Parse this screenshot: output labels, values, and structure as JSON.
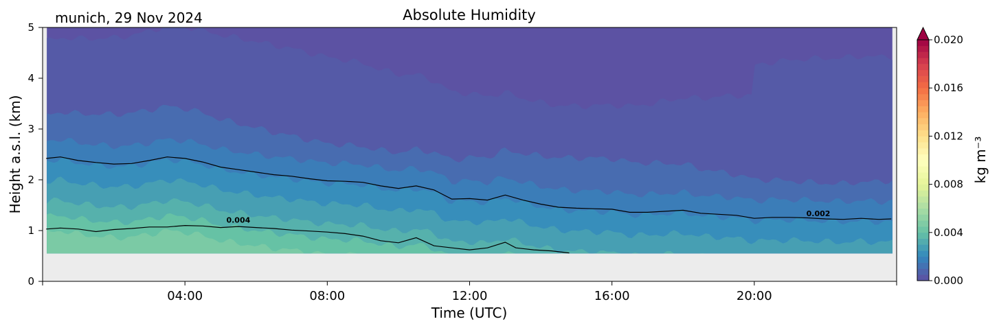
{
  "header": {
    "location_date": "munich, 29 Nov 2024"
  },
  "chart_data": {
    "type": "heatmap",
    "title": "Absolute Humidity",
    "xlabel": "Time (UTC)",
    "ylabel": "Height a.s.l. (km)",
    "xlim_hours": [
      0,
      24
    ],
    "ylim": [
      0,
      5
    ],
    "x_tick_labels": [
      "04:00",
      "08:00",
      "12:00",
      "16:00",
      "20:00"
    ],
    "x_tick_hours": [
      4,
      8,
      12,
      16,
      20
    ],
    "y_ticks": [
      0,
      1,
      2,
      3,
      4,
      5
    ],
    "colorbar": {
      "label": "kg m⁻³",
      "range": [
        0,
        0.02
      ],
      "ticks": [
        0.0,
        0.004,
        0.008,
        0.012,
        0.016,
        0.02
      ],
      "tick_labels": [
        "0.000",
        "0.004",
        "0.008",
        "0.012",
        "0.016",
        "0.020"
      ],
      "colormap": "Spectral_r",
      "extend": "max"
    },
    "contours": [
      {
        "level": 0.002,
        "label": "0.002",
        "points": [
          [
            0.1,
            2.42
          ],
          [
            0.5,
            2.45
          ],
          [
            1.0,
            2.38
          ],
          [
            1.5,
            2.34
          ],
          [
            2.0,
            2.31
          ],
          [
            2.5,
            2.32
          ],
          [
            3.0,
            2.38
          ],
          [
            3.5,
            2.45
          ],
          [
            4.0,
            2.42
          ],
          [
            4.5,
            2.35
          ],
          [
            5.0,
            2.25
          ],
          [
            5.5,
            2.2
          ],
          [
            6.0,
            2.15
          ],
          [
            6.5,
            2.1
          ],
          [
            7.0,
            2.07
          ],
          [
            7.5,
            2.02
          ],
          [
            8.0,
            1.98
          ],
          [
            8.5,
            1.97
          ],
          [
            9.0,
            1.95
          ],
          [
            9.5,
            1.88
          ],
          [
            10.0,
            1.83
          ],
          [
            10.5,
            1.88
          ],
          [
            11.0,
            1.8
          ],
          [
            11.5,
            1.62
          ],
          [
            12.0,
            1.63
          ],
          [
            12.5,
            1.6
          ],
          [
            13.0,
            1.7
          ],
          [
            13.5,
            1.6
          ],
          [
            14.0,
            1.52
          ],
          [
            14.5,
            1.46
          ],
          [
            15.0,
            1.44
          ],
          [
            15.5,
            1.43
          ],
          [
            16.0,
            1.42
          ],
          [
            16.5,
            1.36
          ],
          [
            17.0,
            1.36
          ],
          [
            17.5,
            1.38
          ],
          [
            18.0,
            1.4
          ],
          [
            18.5,
            1.34
          ],
          [
            19.0,
            1.32
          ],
          [
            19.5,
            1.3
          ],
          [
            20.0,
            1.24
          ],
          [
            20.5,
            1.26
          ],
          [
            21.0,
            1.26
          ],
          [
            21.5,
            1.25
          ],
          [
            22.0,
            1.23
          ],
          [
            22.5,
            1.22
          ],
          [
            23.0,
            1.24
          ],
          [
            23.5,
            1.22
          ],
          [
            23.85,
            1.23
          ]
        ],
        "label_at": [
          21.8,
          1.26
        ]
      },
      {
        "level": 0.004,
        "label": "0.004",
        "points": [
          [
            0.1,
            1.03
          ],
          [
            0.5,
            1.05
          ],
          [
            1.0,
            1.03
          ],
          [
            1.5,
            0.98
          ],
          [
            2.0,
            1.02
          ],
          [
            2.5,
            1.04
          ],
          [
            3.0,
            1.07
          ],
          [
            3.5,
            1.07
          ],
          [
            4.0,
            1.1
          ],
          [
            4.5,
            1.09
          ],
          [
            5.0,
            1.06
          ],
          [
            5.5,
            1.08
          ],
          [
            6.0,
            1.06
          ],
          [
            6.5,
            1.04
          ],
          [
            7.0,
            1.01
          ],
          [
            7.5,
            0.99
          ],
          [
            8.0,
            0.97
          ],
          [
            8.5,
            0.94
          ],
          [
            9.0,
            0.89
          ],
          [
            9.5,
            0.8
          ],
          [
            10.0,
            0.76
          ],
          [
            10.5,
            0.86
          ],
          [
            11.0,
            0.7
          ],
          [
            11.5,
            0.66
          ],
          [
            12.0,
            0.62
          ],
          [
            12.5,
            0.66
          ],
          [
            13.0,
            0.77
          ],
          [
            13.3,
            0.66
          ],
          [
            13.8,
            0.62
          ],
          [
            14.3,
            0.6
          ],
          [
            14.8,
            0.56
          ]
        ],
        "label_at": [
          5.5,
          1.13
        ]
      }
    ],
    "annotations": [
      "0.002",
      "0.004"
    ]
  },
  "colors": {
    "no_data": "#ececec",
    "plot_frame": "#000000",
    "contour": "#000000"
  }
}
